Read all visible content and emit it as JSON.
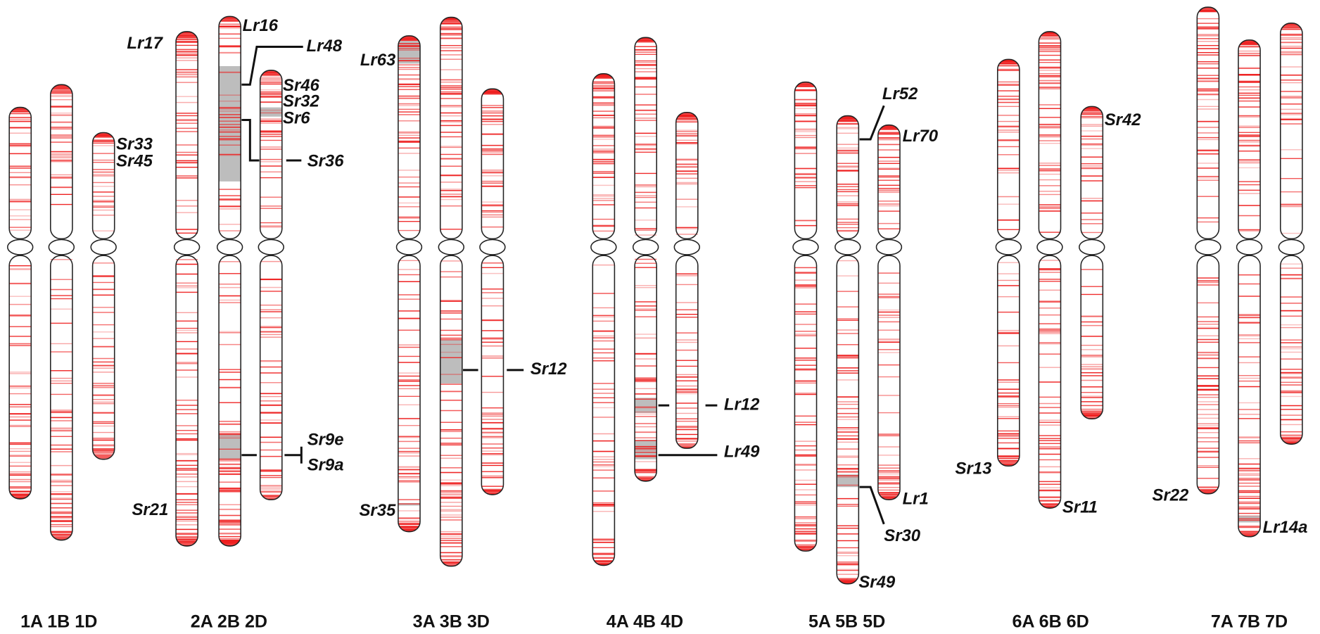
{
  "groups": [
    {
      "label": "1A 1B 1D"
    },
    {
      "label": "2A 2B 2D"
    },
    {
      "label": "3A 3B 3D"
    },
    {
      "label": "4A 4B 4D"
    },
    {
      "label": "5A 5B 5D"
    },
    {
      "label": "6A 6B 6D"
    },
    {
      "label": "7A 7B 7D"
    }
  ],
  "genes": [
    {
      "label": "Lr17"
    },
    {
      "label": "Sr33"
    },
    {
      "label": "Sr45"
    },
    {
      "label": "Sr21"
    },
    {
      "label": "Lr16"
    },
    {
      "label": "Lr48"
    },
    {
      "label": "Sr46"
    },
    {
      "label": "Sr32"
    },
    {
      "label": "Sr6"
    },
    {
      "label": "Sr36"
    },
    {
      "label": "Sr9e"
    },
    {
      "label": "Sr9a"
    },
    {
      "label": "Lr63"
    },
    {
      "label": "Sr35"
    },
    {
      "label": "Sr12"
    },
    {
      "label": "Lr12"
    },
    {
      "label": "Lr49"
    },
    {
      "label": "Lr52"
    },
    {
      "label": "Lr70"
    },
    {
      "label": "Lr1"
    },
    {
      "label": "Sr30"
    },
    {
      "label": "Sr49"
    },
    {
      "label": "Sr13"
    },
    {
      "label": "Sr11"
    },
    {
      "label": "Sr42"
    },
    {
      "label": "Sr22"
    },
    {
      "label": "Lr14a"
    }
  ]
}
